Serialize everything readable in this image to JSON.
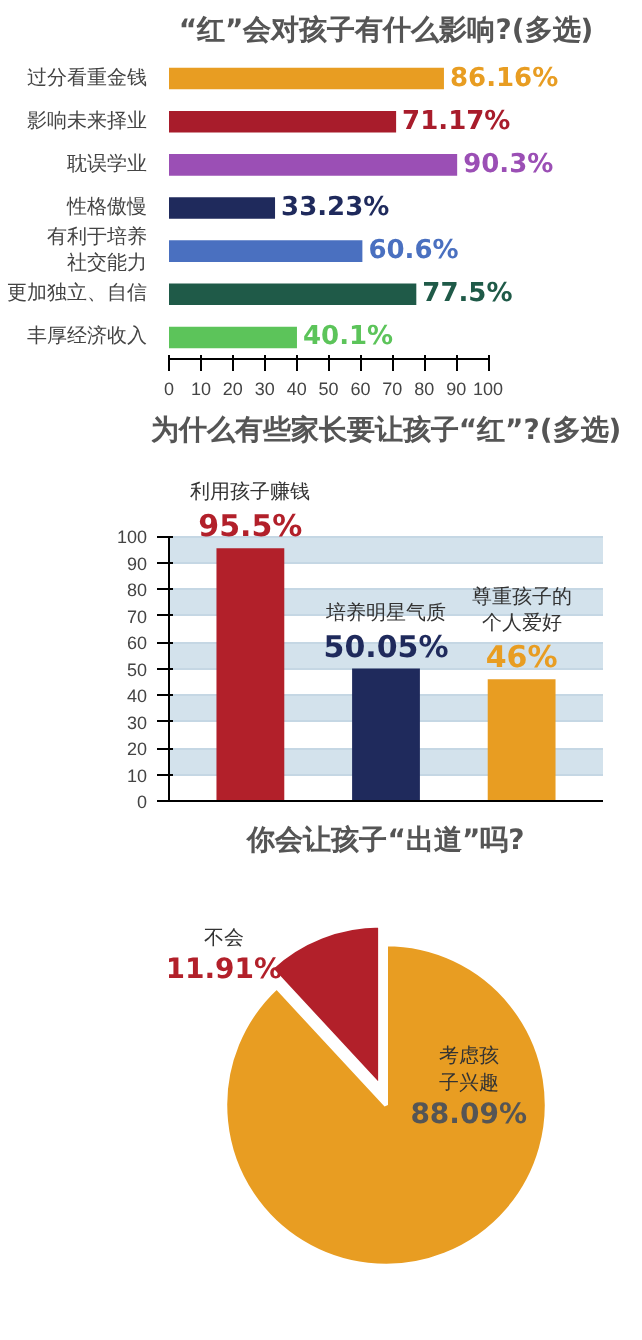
{
  "chart_data": [
    {
      "type": "bar",
      "orientation": "horizontal",
      "title": "“红”会对孩子有什么影响?(多选)",
      "categories": [
        "过分看重金钱",
        "影响未来择业",
        "耽误学业",
        "性格傲慢",
        "有利于培养社交能力",
        "更加独立、自信",
        "丰厚经济收入"
      ],
      "values": [
        86.16,
        71.17,
        90.3,
        33.23,
        60.6,
        77.5,
        40.1
      ],
      "value_labels": [
        "86.16%",
        "71.17%",
        "90.3%",
        "33.23%",
        "60.6%",
        "77.5%",
        "40.1%"
      ],
      "colors": [
        "#e89d22",
        "#a81c2b",
        "#9b4fb5",
        "#1f2a5c",
        "#4a70c0",
        "#1f5a48",
        "#5cc45a"
      ],
      "xlim": [
        0,
        100
      ],
      "xticks": [
        0,
        10,
        20,
        30,
        40,
        50,
        60,
        70,
        80,
        90,
        100
      ],
      "grid": false
    },
    {
      "type": "bar",
      "title": "为什么有些家长要让孩子“红”?(多选)",
      "categories": [
        "利用孩子赚钱",
        "培养明星气质",
        "尊重孩子的个人爱好"
      ],
      "values": [
        95.5,
        50.05,
        46
      ],
      "value_labels": [
        "95.5%",
        "50.05%",
        "46%"
      ],
      "colors": [
        "#b2202a",
        "#1f2a5c",
        "#e89d22"
      ],
      "ylim": [
        0,
        100
      ],
      "yticks": [
        0,
        10,
        20,
        30,
        40,
        50,
        60,
        70,
        80,
        90,
        100
      ],
      "tick_labels": "y",
      "grid": "y"
    },
    {
      "type": "pie",
      "title": "你会让孩子“出道”吗?",
      "categories": [
        "不会",
        "考虑孩子兴趣"
      ],
      "values": [
        11.91,
        88.09
      ],
      "value_labels": [
        "11.91%",
        "88.09%"
      ],
      "colors": [
        "#b2202a",
        "#e89d22"
      ]
    }
  ]
}
